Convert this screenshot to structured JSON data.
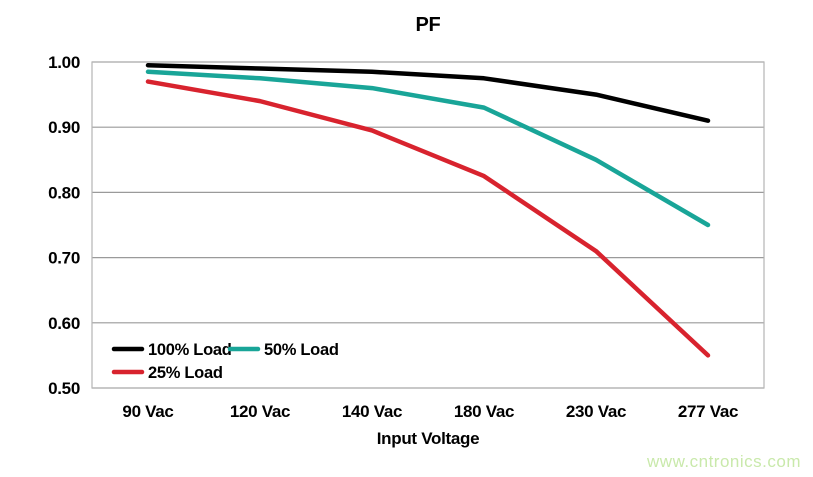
{
  "page": {
    "background": "#ffffff",
    "watermark": "www.cntronics.com",
    "watermark_color": "#c9e9ab"
  },
  "chart_data": {
    "type": "line",
    "title": "PF",
    "xlabel": "Input Voltage",
    "ylabel": "",
    "categories": [
      "90 Vac",
      "120 Vac",
      "140 Vac",
      "180 Vac",
      "230 Vac",
      "277 Vac"
    ],
    "series": [
      {
        "name": "100% Load",
        "color": "#000000",
        "values": [
          0.995,
          0.99,
          0.985,
          0.975,
          0.95,
          0.91
        ]
      },
      {
        "name": "50% Load",
        "color": "#19a598",
        "values": [
          0.985,
          0.975,
          0.96,
          0.93,
          0.85,
          0.75
        ]
      },
      {
        "name": "25% Load",
        "color": "#d8232e",
        "values": [
          0.97,
          0.94,
          0.895,
          0.825,
          0.71,
          0.55
        ]
      }
    ],
    "ylim": [
      0.5,
      1.0
    ],
    "yticks": [
      0.5,
      0.6,
      0.7,
      0.8,
      0.9,
      1.0
    ],
    "ytick_labels": [
      "0.50",
      "0.60",
      "0.70",
      "0.80",
      "0.90",
      "1.00"
    ],
    "grid": true,
    "grid_color": "#9a9a9a",
    "border_color": "#b5b5b5",
    "legend_position": "inside-bottom-left",
    "legend_order": [
      "100% Load",
      "50% Load",
      "25% Load"
    ]
  }
}
